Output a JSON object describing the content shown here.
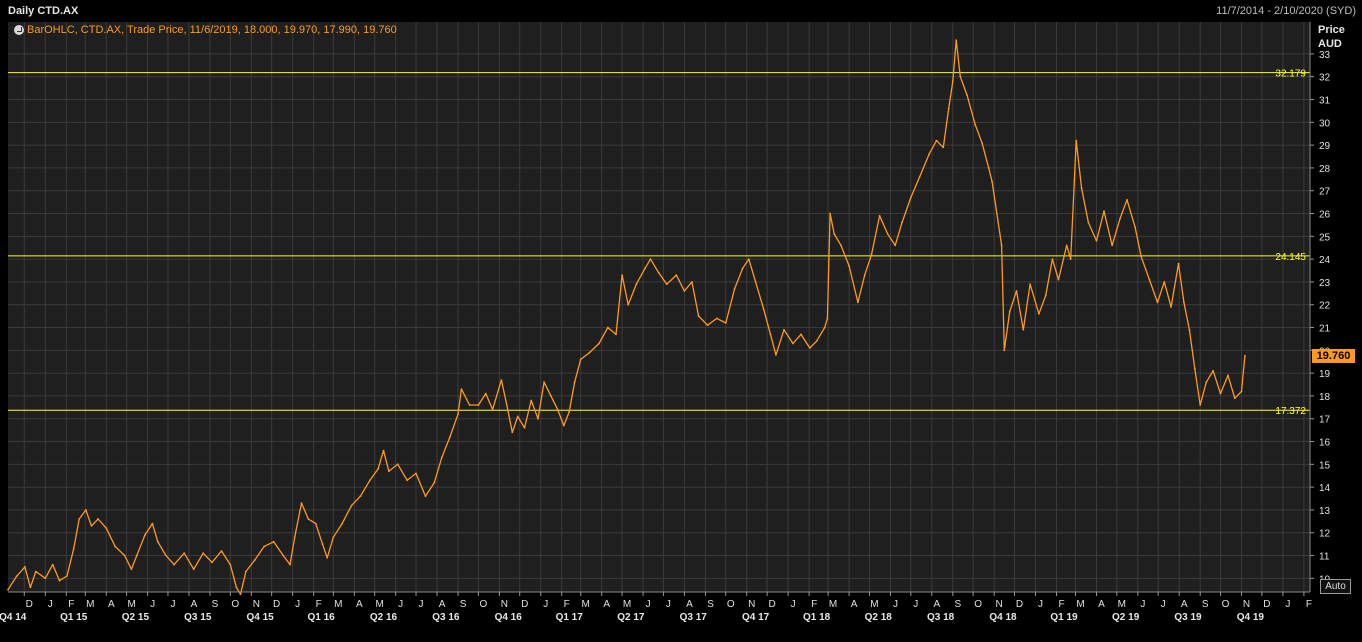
{
  "header": {
    "title": "Daily CTD.AX",
    "date_range": "11/7/2014 - 2/10/2020 (SYD)"
  },
  "legend": {
    "text": "BarOHLC, CTD.AX, Trade Price,  11/6/2019, 18.000, 19.970, 17.990, 19.760"
  },
  "axis": {
    "price_label": "Price",
    "currency_label": "AUD",
    "auto_button": "Auto",
    "last_price_label": "19.760"
  },
  "colors": {
    "background": "#000000",
    "plot_background": "#1f1f1f",
    "series": "#ff9a1c",
    "level_lines": "#ffff1e"
  },
  "chart_data": {
    "type": "line",
    "title": "Daily CTD.AX",
    "xlabel": "",
    "ylabel": "Price AUD",
    "x_range": [
      "2014-11-07",
      "2020-02-10"
    ],
    "ylim": [
      9.4,
      34.4
    ],
    "y_ticks": [
      10,
      11,
      12,
      13,
      14,
      15,
      16,
      17,
      18,
      19,
      20,
      21,
      22,
      23,
      24,
      25,
      26,
      27,
      28,
      29,
      30,
      31,
      32,
      33
    ],
    "grid": true,
    "legend_position": "top-left",
    "horizontal_levels": [
      {
        "value": 32.179,
        "label": "32.179"
      },
      {
        "value": 24.145,
        "label": "24.145"
      },
      {
        "value": 17.372,
        "label": "17.372"
      }
    ],
    "last_value": 19.76,
    "months": [
      {
        "label": "D",
        "date": "2014-12-01"
      },
      {
        "label": "J",
        "date": "2015-01-01"
      },
      {
        "label": "F",
        "date": "2015-02-01"
      },
      {
        "label": "M",
        "date": "2015-03-01"
      },
      {
        "label": "A",
        "date": "2015-04-01"
      },
      {
        "label": "M",
        "date": "2015-05-01"
      },
      {
        "label": "J",
        "date": "2015-06-01"
      },
      {
        "label": "J",
        "date": "2015-07-01"
      },
      {
        "label": "A",
        "date": "2015-08-01"
      },
      {
        "label": "S",
        "date": "2015-09-01"
      },
      {
        "label": "O",
        "date": "2015-10-01"
      },
      {
        "label": "N",
        "date": "2015-11-01"
      },
      {
        "label": "D",
        "date": "2015-12-01"
      },
      {
        "label": "J",
        "date": "2016-01-01"
      },
      {
        "label": "F",
        "date": "2016-02-01"
      },
      {
        "label": "M",
        "date": "2016-03-01"
      },
      {
        "label": "A",
        "date": "2016-04-01"
      },
      {
        "label": "M",
        "date": "2016-05-01"
      },
      {
        "label": "J",
        "date": "2016-06-01"
      },
      {
        "label": "J",
        "date": "2016-07-01"
      },
      {
        "label": "A",
        "date": "2016-08-01"
      },
      {
        "label": "S",
        "date": "2016-09-01"
      },
      {
        "label": "O",
        "date": "2016-10-01"
      },
      {
        "label": "N",
        "date": "2016-11-01"
      },
      {
        "label": "D",
        "date": "2016-12-01"
      },
      {
        "label": "J",
        "date": "2017-01-01"
      },
      {
        "label": "F",
        "date": "2017-02-01"
      },
      {
        "label": "M",
        "date": "2017-03-01"
      },
      {
        "label": "A",
        "date": "2017-04-01"
      },
      {
        "label": "M",
        "date": "2017-05-01"
      },
      {
        "label": "J",
        "date": "2017-06-01"
      },
      {
        "label": "J",
        "date": "2017-07-01"
      },
      {
        "label": "A",
        "date": "2017-08-01"
      },
      {
        "label": "S",
        "date": "2017-09-01"
      },
      {
        "label": "O",
        "date": "2017-10-01"
      },
      {
        "label": "N",
        "date": "2017-11-01"
      },
      {
        "label": "D",
        "date": "2017-12-01"
      },
      {
        "label": "J",
        "date": "2018-01-01"
      },
      {
        "label": "F",
        "date": "2018-02-01"
      },
      {
        "label": "M",
        "date": "2018-03-01"
      },
      {
        "label": "A",
        "date": "2018-04-01"
      },
      {
        "label": "M",
        "date": "2018-05-01"
      },
      {
        "label": "J",
        "date": "2018-06-01"
      },
      {
        "label": "J",
        "date": "2018-07-01"
      },
      {
        "label": "A",
        "date": "2018-08-01"
      },
      {
        "label": "S",
        "date": "2018-09-01"
      },
      {
        "label": "O",
        "date": "2018-10-01"
      },
      {
        "label": "N",
        "date": "2018-11-01"
      },
      {
        "label": "D",
        "date": "2018-12-01"
      },
      {
        "label": "J",
        "date": "2019-01-01"
      },
      {
        "label": "F",
        "date": "2019-02-01"
      },
      {
        "label": "M",
        "date": "2019-03-01"
      },
      {
        "label": "A",
        "date": "2019-04-01"
      },
      {
        "label": "M",
        "date": "2019-05-01"
      },
      {
        "label": "J",
        "date": "2019-06-01"
      },
      {
        "label": "J",
        "date": "2019-07-01"
      },
      {
        "label": "A",
        "date": "2019-08-01"
      },
      {
        "label": "S",
        "date": "2019-09-01"
      },
      {
        "label": "O",
        "date": "2019-10-01"
      },
      {
        "label": "N",
        "date": "2019-11-01"
      },
      {
        "label": "D",
        "date": "2019-12-01"
      },
      {
        "label": "J",
        "date": "2020-01-01"
      },
      {
        "label": "F",
        "date": "2020-02-01"
      }
    ],
    "quarters": [
      {
        "label": "Q4 14",
        "date": "2014-11-14"
      },
      {
        "label": "Q1 15",
        "date": "2015-02-12"
      },
      {
        "label": "Q2 15",
        "date": "2015-05-14"
      },
      {
        "label": "Q3 15",
        "date": "2015-08-14"
      },
      {
        "label": "Q4 15",
        "date": "2015-11-14"
      },
      {
        "label": "Q1 16",
        "date": "2016-02-12"
      },
      {
        "label": "Q2 16",
        "date": "2016-05-14"
      },
      {
        "label": "Q3 16",
        "date": "2016-08-14"
      },
      {
        "label": "Q4 16",
        "date": "2016-11-14"
      },
      {
        "label": "Q1 17",
        "date": "2017-02-12"
      },
      {
        "label": "Q2 17",
        "date": "2017-05-14"
      },
      {
        "label": "Q3 17",
        "date": "2017-08-14"
      },
      {
        "label": "Q4 17",
        "date": "2017-11-14"
      },
      {
        "label": "Q1 18",
        "date": "2018-02-12"
      },
      {
        "label": "Q2 18",
        "date": "2018-05-14"
      },
      {
        "label": "Q3 18",
        "date": "2018-08-14"
      },
      {
        "label": "Q4 18",
        "date": "2018-11-14"
      },
      {
        "label": "Q1 19",
        "date": "2019-02-12"
      },
      {
        "label": "Q2 19",
        "date": "2019-05-14"
      },
      {
        "label": "Q3 19",
        "date": "2019-08-14"
      },
      {
        "label": "Q4 19",
        "date": "2019-11-14"
      }
    ],
    "series": [
      {
        "points": [
          [
            "2014-11-07",
            9.5
          ],
          [
            "2014-11-20",
            10.1
          ],
          [
            "2014-12-02",
            10.5
          ],
          [
            "2014-12-10",
            9.6
          ],
          [
            "2014-12-18",
            10.3
          ],
          [
            "2015-01-01",
            10.0
          ],
          [
            "2015-01-12",
            10.6
          ],
          [
            "2015-01-22",
            9.9
          ],
          [
            "2015-02-02",
            10.1
          ],
          [
            "2015-02-12",
            11.3
          ],
          [
            "2015-02-20",
            12.6
          ],
          [
            "2015-03-02",
            13.0
          ],
          [
            "2015-03-10",
            12.3
          ],
          [
            "2015-03-20",
            12.6
          ],
          [
            "2015-04-01",
            12.2
          ],
          [
            "2015-04-14",
            11.4
          ],
          [
            "2015-04-28",
            11.0
          ],
          [
            "2015-05-08",
            10.4
          ],
          [
            "2015-05-16",
            11.0
          ],
          [
            "2015-05-28",
            11.9
          ],
          [
            "2015-06-08",
            12.4
          ],
          [
            "2015-06-16",
            11.6
          ],
          [
            "2015-06-28",
            11.0
          ],
          [
            "2015-07-10",
            10.6
          ],
          [
            "2015-07-25",
            11.1
          ],
          [
            "2015-08-08",
            10.4
          ],
          [
            "2015-08-22",
            11.1
          ],
          [
            "2015-09-04",
            10.7
          ],
          [
            "2015-09-18",
            11.2
          ],
          [
            "2015-10-01",
            10.6
          ],
          [
            "2015-10-10",
            9.6
          ],
          [
            "2015-10-16",
            9.3
          ],
          [
            "2015-10-24",
            10.3
          ],
          [
            "2015-11-06",
            10.8
          ],
          [
            "2015-11-20",
            11.4
          ],
          [
            "2015-12-04",
            11.6
          ],
          [
            "2015-12-18",
            11.0
          ],
          [
            "2015-12-28",
            10.6
          ],
          [
            "2016-01-04",
            11.8
          ],
          [
            "2016-01-14",
            13.3
          ],
          [
            "2016-01-24",
            12.6
          ],
          [
            "2016-02-04",
            12.4
          ],
          [
            "2016-02-14",
            11.5
          ],
          [
            "2016-02-21",
            10.9
          ],
          [
            "2016-03-01",
            11.8
          ],
          [
            "2016-03-14",
            12.4
          ],
          [
            "2016-03-28",
            13.2
          ],
          [
            "2016-04-10",
            13.6
          ],
          [
            "2016-04-24",
            14.3
          ],
          [
            "2016-05-06",
            14.8
          ],
          [
            "2016-05-14",
            15.6
          ],
          [
            "2016-05-22",
            14.7
          ],
          [
            "2016-06-04",
            15.0
          ],
          [
            "2016-06-18",
            14.3
          ],
          [
            "2016-07-01",
            14.6
          ],
          [
            "2016-07-15",
            13.6
          ],
          [
            "2016-07-28",
            14.2
          ],
          [
            "2016-08-08",
            15.3
          ],
          [
            "2016-08-20",
            16.2
          ],
          [
            "2016-09-01",
            17.2
          ],
          [
            "2016-09-06",
            18.3
          ],
          [
            "2016-09-18",
            17.6
          ],
          [
            "2016-10-01",
            17.6
          ],
          [
            "2016-10-12",
            18.1
          ],
          [
            "2016-10-22",
            17.4
          ],
          [
            "2016-11-04",
            18.7
          ],
          [
            "2016-11-12",
            17.6
          ],
          [
            "2016-11-20",
            16.4
          ],
          [
            "2016-11-28",
            17.1
          ],
          [
            "2016-12-08",
            16.6
          ],
          [
            "2016-12-18",
            17.8
          ],
          [
            "2016-12-28",
            17.0
          ],
          [
            "2017-01-06",
            18.6
          ],
          [
            "2017-01-16",
            18.0
          ],
          [
            "2017-01-26",
            17.4
          ],
          [
            "2017-02-04",
            16.7
          ],
          [
            "2017-02-12",
            17.3
          ],
          [
            "2017-02-20",
            18.6
          ],
          [
            "2017-03-01",
            19.6
          ],
          [
            "2017-03-14",
            19.9
          ],
          [
            "2017-03-28",
            20.3
          ],
          [
            "2017-04-10",
            21.0
          ],
          [
            "2017-04-22",
            20.7
          ],
          [
            "2017-05-01",
            23.3
          ],
          [
            "2017-05-10",
            22.0
          ],
          [
            "2017-05-22",
            22.9
          ],
          [
            "2017-06-04",
            23.6
          ],
          [
            "2017-06-12",
            24.0
          ],
          [
            "2017-06-24",
            23.4
          ],
          [
            "2017-07-06",
            22.9
          ],
          [
            "2017-07-20",
            23.3
          ],
          [
            "2017-08-01",
            22.6
          ],
          [
            "2017-08-12",
            23.0
          ],
          [
            "2017-08-22",
            21.5
          ],
          [
            "2017-09-04",
            21.1
          ],
          [
            "2017-09-18",
            21.4
          ],
          [
            "2017-10-01",
            21.2
          ],
          [
            "2017-10-14",
            22.7
          ],
          [
            "2017-10-26",
            23.6
          ],
          [
            "2017-11-04",
            24.0
          ],
          [
            "2017-11-14",
            23.0
          ],
          [
            "2017-11-26",
            21.8
          ],
          [
            "2017-12-06",
            20.7
          ],
          [
            "2017-12-14",
            19.8
          ],
          [
            "2017-12-26",
            20.9
          ],
          [
            "2018-01-08",
            20.3
          ],
          [
            "2018-01-20",
            20.7
          ],
          [
            "2018-02-02",
            20.1
          ],
          [
            "2018-02-12",
            20.4
          ],
          [
            "2018-02-24",
            21.0
          ],
          [
            "2018-02-28",
            21.4
          ],
          [
            "2018-03-04",
            26.0
          ],
          [
            "2018-03-10",
            25.1
          ],
          [
            "2018-03-20",
            24.6
          ],
          [
            "2018-04-01",
            23.7
          ],
          [
            "2018-04-14",
            22.1
          ],
          [
            "2018-04-24",
            23.3
          ],
          [
            "2018-05-04",
            24.2
          ],
          [
            "2018-05-16",
            25.9
          ],
          [
            "2018-05-28",
            25.1
          ],
          [
            "2018-06-08",
            24.6
          ],
          [
            "2018-06-18",
            25.6
          ],
          [
            "2018-07-01",
            26.7
          ],
          [
            "2018-07-14",
            27.6
          ],
          [
            "2018-07-28",
            28.6
          ],
          [
            "2018-08-08",
            29.2
          ],
          [
            "2018-08-18",
            28.9
          ],
          [
            "2018-08-26",
            30.6
          ],
          [
            "2018-09-01",
            31.8
          ],
          [
            "2018-09-06",
            33.6
          ],
          [
            "2018-09-12",
            32.0
          ],
          [
            "2018-09-22",
            31.2
          ],
          [
            "2018-10-04",
            29.9
          ],
          [
            "2018-10-14",
            29.1
          ],
          [
            "2018-10-24",
            28.0
          ],
          [
            "2018-10-29",
            27.4
          ],
          [
            "2018-11-12",
            24.6
          ],
          [
            "2018-11-16",
            20.0
          ],
          [
            "2018-11-24",
            21.7
          ],
          [
            "2018-12-04",
            22.6
          ],
          [
            "2018-12-14",
            20.9
          ],
          [
            "2018-12-24",
            22.9
          ],
          [
            "2019-01-06",
            21.6
          ],
          [
            "2019-01-16",
            22.4
          ],
          [
            "2019-01-26",
            24.0
          ],
          [
            "2019-02-04",
            23.1
          ],
          [
            "2019-02-16",
            24.6
          ],
          [
            "2019-02-22",
            24.0
          ],
          [
            "2019-03-02",
            29.2
          ],
          [
            "2019-03-10",
            27.1
          ],
          [
            "2019-03-20",
            25.6
          ],
          [
            "2019-04-01",
            24.8
          ],
          [
            "2019-04-12",
            26.1
          ],
          [
            "2019-04-24",
            24.6
          ],
          [
            "2019-05-06",
            25.8
          ],
          [
            "2019-05-16",
            26.6
          ],
          [
            "2019-05-28",
            25.4
          ],
          [
            "2019-06-06",
            24.1
          ],
          [
            "2019-06-18",
            23.1
          ],
          [
            "2019-06-30",
            22.1
          ],
          [
            "2019-07-10",
            23.0
          ],
          [
            "2019-07-20",
            21.9
          ],
          [
            "2019-07-31",
            23.8
          ],
          [
            "2019-08-08",
            22.1
          ],
          [
            "2019-08-16",
            20.9
          ],
          [
            "2019-08-24",
            19.2
          ],
          [
            "2019-09-01",
            17.6
          ],
          [
            "2019-09-10",
            18.6
          ],
          [
            "2019-09-20",
            19.1
          ],
          [
            "2019-10-01",
            18.1
          ],
          [
            "2019-10-12",
            18.9
          ],
          [
            "2019-10-22",
            17.9
          ],
          [
            "2019-11-01",
            18.2
          ],
          [
            "2019-11-06",
            19.76
          ]
        ]
      }
    ]
  }
}
